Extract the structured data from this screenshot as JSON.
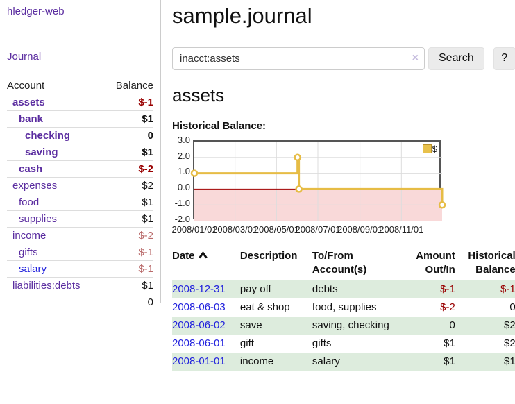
{
  "sidebar": {
    "brand": "hledger-web",
    "journal_link": "Journal",
    "accounts_table": {
      "headers": {
        "account": "Account",
        "balance": "Balance"
      },
      "rows": [
        {
          "name": "assets",
          "indent": 1,
          "bold": true,
          "balance": "$-1",
          "balance_style": "negative",
          "link_color": "purple"
        },
        {
          "name": "bank",
          "indent": 2,
          "bold": true,
          "balance": "$1",
          "balance_style": "normal",
          "link_color": "purple"
        },
        {
          "name": "checking",
          "indent": 3,
          "bold": true,
          "balance": "0",
          "balance_style": "normal",
          "link_color": "purple"
        },
        {
          "name": "saving",
          "indent": 3,
          "bold": true,
          "balance": "$1",
          "balance_style": "normal",
          "link_color": "purple"
        },
        {
          "name": "cash",
          "indent": 2,
          "bold": true,
          "balance": "$-2",
          "balance_style": "negative",
          "link_color": "purple"
        },
        {
          "name": "expenses",
          "indent": 1,
          "bold": false,
          "balance": "$2",
          "balance_style": "normal",
          "link_color": "purple"
        },
        {
          "name": "food",
          "indent": 2,
          "bold": false,
          "balance": "$1",
          "balance_style": "normal",
          "link_color": "purple"
        },
        {
          "name": "supplies",
          "indent": 2,
          "bold": false,
          "balance": "$1",
          "balance_style": "normal",
          "link_color": "purple"
        },
        {
          "name": "income",
          "indent": 1,
          "bold": false,
          "balance": "$-2",
          "balance_style": "negative-light",
          "link_color": "purple"
        },
        {
          "name": "gifts",
          "indent": 2,
          "bold": false,
          "balance": "$-1",
          "balance_style": "negative-light",
          "link_color": "purple"
        },
        {
          "name": "salary",
          "indent": 2,
          "bold": false,
          "balance": "$-1",
          "balance_style": "negative-light",
          "link_color": "blue"
        },
        {
          "name": "liabilities:debts",
          "indent": 1,
          "bold": false,
          "balance": "$1",
          "balance_style": "normal",
          "link_color": "purple"
        }
      ],
      "total": "0"
    }
  },
  "header": {
    "title": "sample.journal"
  },
  "search": {
    "value": "inacct:assets",
    "clear_icon": "×",
    "button_label": "Search",
    "help_label": "?"
  },
  "account_page": {
    "heading": "assets",
    "chart_label": "Historical Balance:"
  },
  "chart_data": {
    "type": "line",
    "step": true,
    "title": "Historical Balance",
    "x_range": [
      "2008-01-01",
      "2008-12-31"
    ],
    "ylim": [
      -2,
      3
    ],
    "y_ticks": [
      "3.0",
      "2.0",
      "1.0",
      "0.0",
      "-1.0",
      "-2.0"
    ],
    "x_ticks": [
      "2008/01/01",
      "2008/03/01",
      "2008/05/01",
      "2008/07/01",
      "2008/09/01",
      "2008/11/01"
    ],
    "grid": true,
    "legend": {
      "label": "$",
      "position": "top-right"
    },
    "series": [
      {
        "name": "$",
        "color": "#e6bc45",
        "points": [
          [
            "2008-01-01",
            1
          ],
          [
            "2008-06-01",
            2
          ],
          [
            "2008-06-03",
            0
          ],
          [
            "2008-12-31",
            -1
          ]
        ]
      }
    ],
    "negative_region_fill": "#f9d9d9",
    "zero_line_color": "#a00000",
    "gridline_color": "#dddddd"
  },
  "register_table": {
    "headers": [
      {
        "label": "Date",
        "sorted": "asc"
      },
      {
        "label": "Description"
      },
      {
        "label": "To/From Account(s)"
      },
      {
        "label": "Amount Out/In",
        "align": "right"
      },
      {
        "label": "Historical Balance",
        "align": "right"
      }
    ],
    "rows": [
      {
        "date": "2008-12-31",
        "description": "pay off",
        "accounts": "debts",
        "amount": "$-1",
        "amount_negative": true,
        "balance": "$-1",
        "balance_negative": true,
        "highlight": true
      },
      {
        "date": "2008-06-03",
        "description": "eat & shop",
        "accounts": "food, supplies",
        "amount": "$-2",
        "amount_negative": true,
        "balance": "0",
        "balance_negative": false,
        "highlight": false
      },
      {
        "date": "2008-06-02",
        "description": "save",
        "accounts": "saving, checking",
        "amount": "0",
        "amount_negative": false,
        "balance": "$2",
        "balance_negative": false,
        "highlight": true
      },
      {
        "date": "2008-06-01",
        "description": "gift",
        "accounts": "gifts",
        "amount": "$1",
        "amount_negative": false,
        "balance": "$2",
        "balance_negative": false,
        "highlight": false
      },
      {
        "date": "2008-01-01",
        "description": "income",
        "accounts": "salary",
        "amount": "$1",
        "amount_negative": false,
        "balance": "$1",
        "balance_negative": false,
        "highlight": true
      }
    ]
  },
  "colors": {
    "accent_purple": "#5b2da0",
    "link_blue": "#2222dd",
    "negative_dark": "#990000",
    "negative_light": "#b96a6a",
    "row_green": "#ddecdd",
    "chart_gold": "#e6bc45",
    "chart_negative_fill": "#f9d9d9",
    "chart_zero_line": "#a00000"
  }
}
